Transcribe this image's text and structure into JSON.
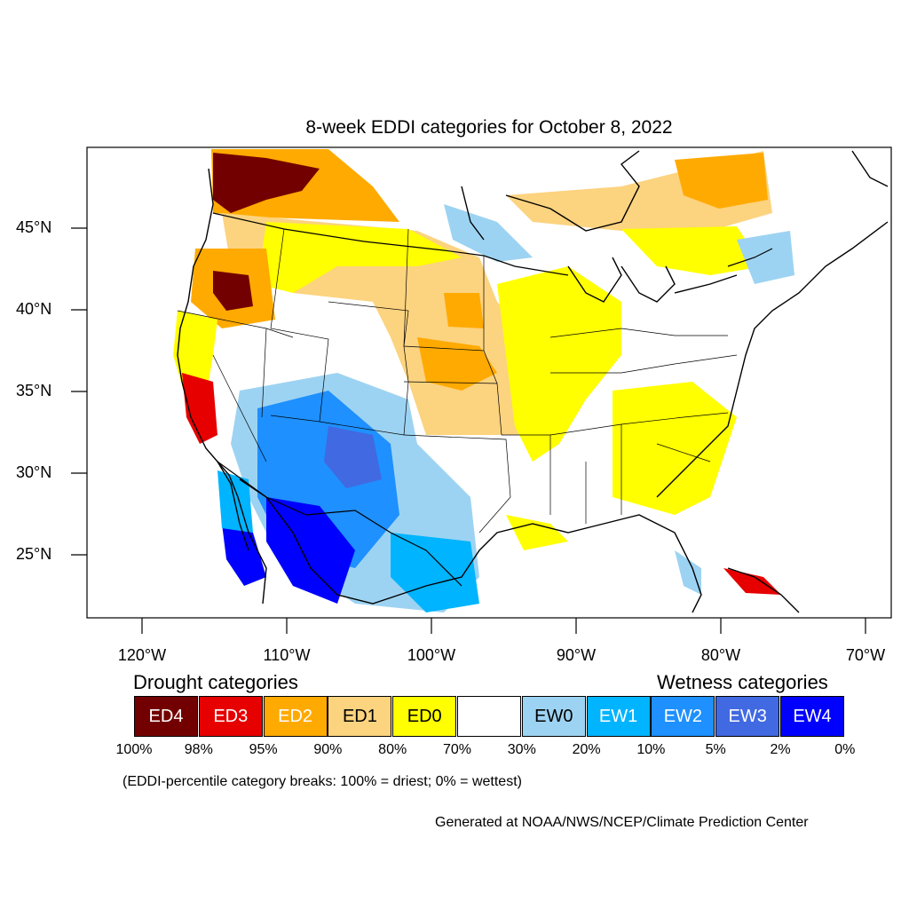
{
  "title": "8-week EDDI categories for October 8, 2022",
  "lat_labels": [
    "45°N",
    "40°N",
    "35°N",
    "30°N",
    "25°N"
  ],
  "lon_labels": [
    "120°W",
    "110°W",
    "100°W",
    "90°W",
    "80°W",
    "70°W"
  ],
  "legend": {
    "drought_heading": "Drought categories",
    "wetness_heading": "Wetness categories",
    "categories": [
      {
        "label": "ED4",
        "color": "#730000"
      },
      {
        "label": "ED3",
        "color": "#e60000"
      },
      {
        "label": "ED2",
        "color": "#ffaa00"
      },
      {
        "label": "ED1",
        "color": "#fcd37f"
      },
      {
        "label": "ED0",
        "color": "#ffff00"
      },
      {
        "label": "",
        "color": "#ffffff"
      },
      {
        "label": "EW0",
        "color": "#9dd3f2"
      },
      {
        "label": "EW1",
        "color": "#00b4ff"
      },
      {
        "label": "EW2",
        "color": "#1e90ff"
      },
      {
        "label": "EW3",
        "color": "#4169e1"
      },
      {
        "label": "EW4",
        "color": "#0000ff"
      }
    ],
    "breaks": [
      "100%",
      "98%",
      "95%",
      "90%",
      "80%",
      "70%",
      "30%",
      "20%",
      "10%",
      "5%",
      "2%",
      "0%"
    ]
  },
  "note": "(EDDI-percentile category breaks: 100% = driest; 0% = wettest)",
  "credit": "Generated at NOAA/NWS/NCEP/Climate Prediction Center"
}
